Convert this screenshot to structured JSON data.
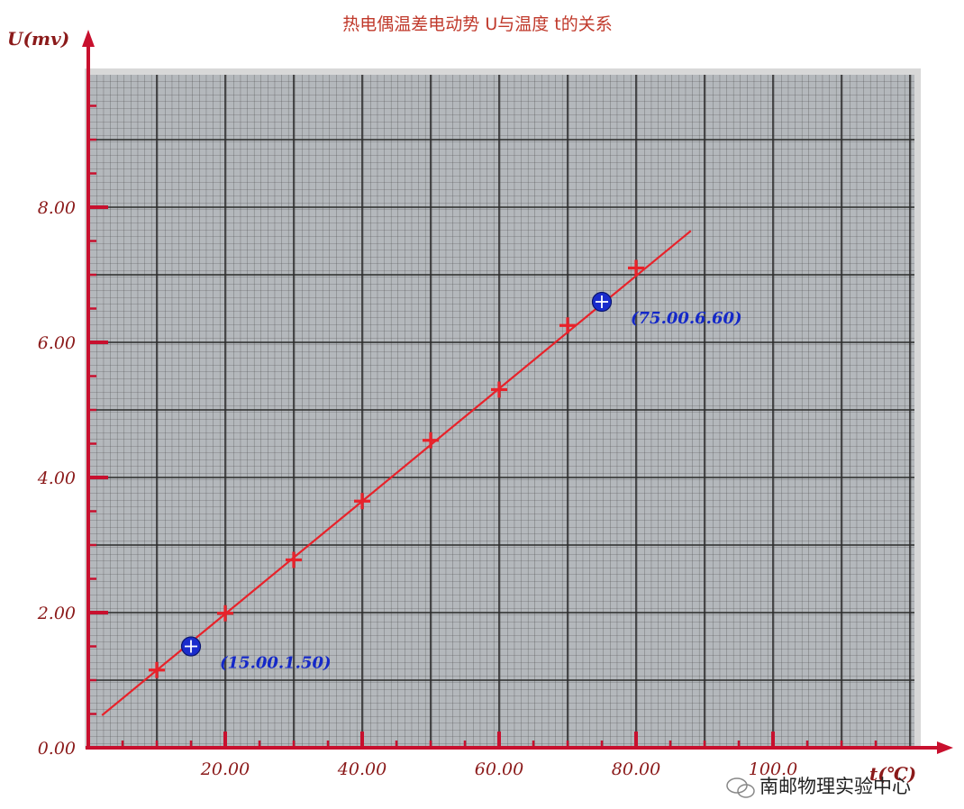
{
  "chart_data": {
    "type": "scatter",
    "title": "热电偶温差电动势 U与温度 t的关系",
    "xlabel": "t(℃)",
    "ylabel": "U(mv)",
    "xlim": [
      0,
      120
    ],
    "ylim": [
      0,
      10
    ],
    "x_ticks": [
      20,
      40,
      60,
      80,
      100
    ],
    "x_tick_labels": [
      "20.00",
      "40.00",
      "60.00",
      "80.00",
      "100.0"
    ],
    "y_ticks": [
      0,
      2,
      4,
      6,
      8
    ],
    "y_tick_labels": [
      "0.00",
      "2.00",
      "4.00",
      "6.00",
      "8.00"
    ],
    "grid": true,
    "series": [
      {
        "marker": "plus",
        "color": "#e8222a",
        "x": [
          10,
          20,
          30,
          40,
          50,
          60,
          70,
          80
        ],
        "y": [
          1.15,
          1.99,
          2.78,
          3.65,
          4.55,
          5.3,
          6.25,
          7.1
        ]
      }
    ],
    "fit_line": {
      "color": "#e8222a",
      "x": [
        2,
        88
      ],
      "y": [
        0.48,
        7.65
      ]
    },
    "highlight_points": [
      {
        "x": 15.0,
        "y": 1.5,
        "label": "(15.00.1.50)",
        "color": "#1a2ccc"
      },
      {
        "x": 75.0,
        "y": 6.6,
        "label": "(75.00.6.60)",
        "color": "#1a2ccc"
      }
    ]
  },
  "watermark": {
    "text": "南邮物理实验中心"
  }
}
